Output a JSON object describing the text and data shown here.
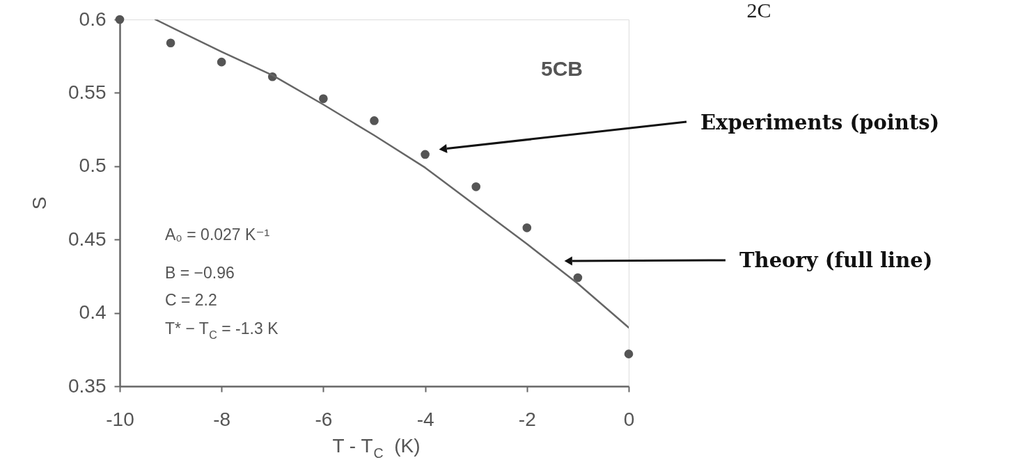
{
  "chart_data": {
    "type": "scatter",
    "xlabel": "T - T$_{C}$  (K)",
    "ylabel": "S",
    "xlim": [
      -10,
      0
    ],
    "ylim": [
      0.35,
      0.6
    ],
    "xticks": [
      -10,
      -8,
      -6,
      -4,
      -2,
      0
    ],
    "yticks": [
      0.35,
      0.4,
      0.45,
      0.5,
      0.55,
      0.6
    ],
    "grid": false,
    "marker": "circle",
    "line_style": "solid",
    "series": [
      {
        "color": "#555555",
        "x": [
          -10,
          -9,
          -8,
          -7,
          -6,
          -5,
          -4,
          -3,
          -2,
          -1,
          0
        ],
        "values": [
          0.6,
          0.584,
          0.571,
          0.561,
          0.546,
          0.531,
          0.508,
          0.486,
          0.458,
          0.424,
          0.372
        ]
      },
      {
        "type": "line",
        "color": "#666666",
        "marker": "none",
        "x": [
          -9.3,
          -8,
          -7,
          -6,
          -5,
          -4,
          -3,
          -2,
          -1,
          0
        ],
        "values": [
          0.6,
          0.578,
          0.562,
          0.542,
          0.521,
          0.499,
          0.473,
          0.447,
          0.42,
          0.39
        ]
      }
    ],
    "annotations": [
      "5CB",
      "A₀ = 0.027 K⁻¹",
      "B = −0.96",
      "C = 2.2",
      "T* − T$_{C}$ = -1.3 K",
      "2C",
      "Experiments (points)",
      "Theory (full line)"
    ]
  }
}
